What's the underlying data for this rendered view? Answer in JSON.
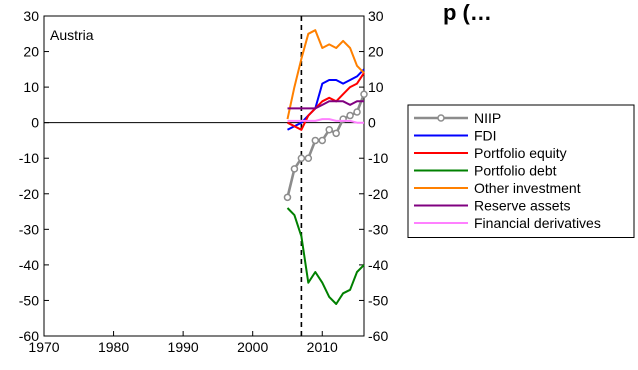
{
  "chart_data": {
    "type": "line",
    "title": "p (…",
    "panel_label": "Austria",
    "xlabel": "",
    "ylabel": "",
    "xlim": [
      1970,
      2016
    ],
    "ylim": [
      -60,
      30
    ],
    "x_ticks": [
      1970,
      1980,
      1990,
      2000,
      2010
    ],
    "x_tick_labels": [
      "1970",
      "1980",
      "1990",
      "2000",
      "2010"
    ],
    "y_ticks": [
      30,
      20,
      10,
      0,
      -10,
      -20,
      -30,
      -40,
      -50,
      -60
    ],
    "y_tick_labels": [
      "30",
      "20",
      "10",
      "0",
      "-10",
      "-20",
      "-30",
      "-40",
      "-50",
      "-60"
    ],
    "reference_lines": {
      "horizontal_y": 0,
      "vertical_dashed_x": 2007
    },
    "grid": false,
    "legend": {
      "position": "right"
    },
    "series": [
      {
        "name": "NIIP",
        "color": "#8c8c8c",
        "marker": "circle",
        "x": [
          2005,
          2006,
          2007,
          2008,
          2009,
          2010,
          2011,
          2012,
          2013,
          2014,
          2015,
          2016
        ],
        "values": [
          -21,
          -13,
          -10,
          -10,
          -5,
          -5,
          -2,
          -3,
          1,
          2,
          3,
          8
        ]
      },
      {
        "name": "FDI",
        "color": "#0000ff",
        "x": [
          2005,
          2006,
          2007,
          2008,
          2009,
          2010,
          2011,
          2012,
          2013,
          2014,
          2015,
          2016
        ],
        "values": [
          -2,
          -1,
          0,
          2,
          4,
          11,
          12,
          12,
          11,
          12,
          13,
          15
        ]
      },
      {
        "name": "Portfolio equity",
        "color": "#ff0000",
        "x": [
          2005,
          2006,
          2007,
          2008,
          2009,
          2010,
          2011,
          2012,
          2013,
          2014,
          2015,
          2016
        ],
        "values": [
          0,
          -1,
          -2,
          2,
          4,
          6,
          7,
          6,
          8,
          10,
          11,
          14
        ]
      },
      {
        "name": "Portfolio debt",
        "color": "#008000",
        "x": [
          2005,
          2006,
          2007,
          2008,
          2009,
          2010,
          2011,
          2012,
          2013,
          2014,
          2015,
          2016
        ],
        "values": [
          -24,
          -26,
          -32,
          -45,
          -42,
          -45,
          -49,
          -51,
          -48,
          -47,
          -42,
          -40
        ]
      },
      {
        "name": "Other investment",
        "color": "#ff8000",
        "x": [
          2005,
          2006,
          2007,
          2008,
          2009,
          2010,
          2011,
          2012,
          2013,
          2014,
          2015,
          2016
        ],
        "values": [
          1,
          10,
          18,
          25,
          26,
          21,
          22,
          21,
          23,
          21,
          16,
          14
        ]
      },
      {
        "name": "Reserve assets",
        "color": "#800080",
        "x": [
          2005,
          2006,
          2007,
          2008,
          2009,
          2010,
          2011,
          2012,
          2013,
          2014,
          2015,
          2016
        ],
        "values": [
          4,
          4,
          4,
          4,
          4,
          5,
          6,
          6,
          6,
          5,
          6,
          6
        ]
      },
      {
        "name": "Financial derivatives",
        "color": "#ff80ff",
        "x": [
          2005,
          2006,
          2007,
          2008,
          2009,
          2010,
          2011,
          2012,
          2013,
          2014,
          2015,
          2016
        ],
        "values": [
          0.5,
          0.5,
          0.5,
          0.5,
          0.5,
          1,
          1,
          0.5,
          0.5,
          0.5,
          0,
          0
        ]
      }
    ]
  }
}
